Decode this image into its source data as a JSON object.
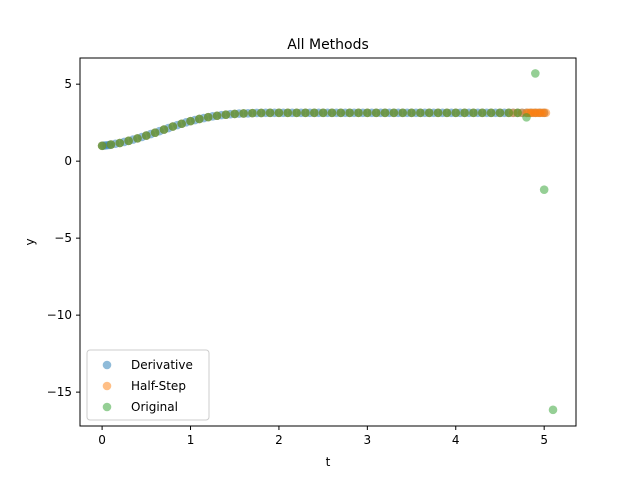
{
  "chart_data": {
    "type": "scatter",
    "title": "All Methods",
    "xlabel": "t",
    "ylabel": "y",
    "xlim": [
      -0.25,
      5.36
    ],
    "ylim": [
      -17.2,
      6.7
    ],
    "xticks": [
      0,
      1,
      2,
      3,
      4,
      5
    ],
    "yticks": [
      -15,
      -10,
      -5,
      0,
      5
    ],
    "ytick_labels": [
      "−15",
      "−10",
      "−5",
      "0",
      "5"
    ],
    "grid": false,
    "legend": {
      "placement": "lower-left",
      "entries": [
        "Derivative",
        "Half-Step",
        "Original"
      ]
    },
    "series": [
      {
        "name": "Derivative",
        "color": "#1f77b4",
        "opacity": 0.5,
        "x": [
          0.0,
          0.02,
          0.05,
          0.08,
          0.1,
          0.15,
          0.2,
          0.25,
          0.3,
          0.35,
          0.4,
          0.45,
          0.5,
          0.55,
          0.6,
          0.65,
          0.7,
          0.75,
          0.8,
          0.85,
          0.9,
          0.95,
          1.0,
          1.05,
          1.1,
          1.15,
          1.2,
          1.25,
          1.3,
          1.35,
          1.4,
          1.45,
          1.5,
          1.55,
          1.6,
          1.65,
          1.7,
          1.75,
          1.8,
          1.85,
          1.9,
          1.95,
          2.0,
          2.05,
          2.1,
          2.15,
          2.2,
          2.25,
          2.3,
          2.35,
          2.4,
          2.45,
          2.5,
          2.55,
          2.6,
          2.65,
          2.7,
          2.75,
          2.8,
          2.85,
          2.9,
          2.95,
          3.0,
          3.05,
          3.1,
          3.15,
          3.2,
          3.25,
          3.3,
          3.35,
          3.4,
          3.45,
          3.5,
          3.55,
          3.6,
          3.65,
          3.7,
          3.75,
          3.8,
          3.85,
          3.9,
          3.95,
          4.0,
          4.05,
          4.1,
          4.15,
          4.2,
          4.25,
          4.3,
          4.35,
          4.4,
          4.45,
          4.5,
          4.55,
          4.6,
          4.65,
          4.7,
          4.75,
          4.8,
          4.85,
          4.9,
          4.95,
          5.0
        ],
        "y": [
          1.0,
          1.01,
          1.03,
          1.05,
          1.08,
          1.13,
          1.18,
          1.25,
          1.32,
          1.4,
          1.48,
          1.57,
          1.66,
          1.76,
          1.85,
          1.95,
          2.05,
          2.15,
          2.25,
          2.34,
          2.43,
          2.52,
          2.6,
          2.67,
          2.74,
          2.8,
          2.86,
          2.91,
          2.95,
          2.99,
          3.02,
          3.05,
          3.07,
          3.09,
          3.1,
          3.11,
          3.12,
          3.13,
          3.13,
          3.14,
          3.14,
          3.14,
          3.14,
          3.14,
          3.14,
          3.14,
          3.14,
          3.14,
          3.14,
          3.14,
          3.14,
          3.14,
          3.14,
          3.14,
          3.14,
          3.14,
          3.14,
          3.14,
          3.14,
          3.14,
          3.14,
          3.14,
          3.14,
          3.14,
          3.14,
          3.14,
          3.14,
          3.14,
          3.14,
          3.14,
          3.14,
          3.14,
          3.14,
          3.14,
          3.14,
          3.14,
          3.14,
          3.14,
          3.14,
          3.14,
          3.14,
          3.14,
          3.14,
          3.14,
          3.14,
          3.14,
          3.14,
          3.14,
          3.14,
          3.14,
          3.14,
          3.14,
          3.14,
          3.14,
          3.14,
          3.14,
          3.14,
          3.14,
          3.14,
          3.14,
          3.14,
          3.14,
          3.14
        ]
      },
      {
        "name": "Half-Step",
        "color": "#ff7f0e",
        "opacity": 0.5,
        "x": [
          0.0,
          0.1,
          0.2,
          0.3,
          0.4,
          0.5,
          0.6,
          0.7,
          0.8,
          0.9,
          1.0,
          1.1,
          1.2,
          1.3,
          1.4,
          1.5,
          1.6,
          1.7,
          1.8,
          1.9,
          2.0,
          2.1,
          2.2,
          2.3,
          2.4,
          2.5,
          2.6,
          2.7,
          2.8,
          2.9,
          3.0,
          3.1,
          3.2,
          3.3,
          3.4,
          3.5,
          3.6,
          3.7,
          3.8,
          3.9,
          4.0,
          4.1,
          4.2,
          4.3,
          4.4,
          4.5,
          4.6,
          4.65,
          4.7,
          4.75,
          4.8,
          4.82,
          4.84,
          4.86,
          4.88,
          4.9,
          4.92,
          4.94,
          4.96,
          4.98,
          5.0,
          5.02
        ],
        "y": [
          1.0,
          1.08,
          1.18,
          1.32,
          1.48,
          1.66,
          1.85,
          2.05,
          2.25,
          2.43,
          2.6,
          2.74,
          2.86,
          2.95,
          3.02,
          3.07,
          3.1,
          3.12,
          3.13,
          3.14,
          3.14,
          3.14,
          3.14,
          3.14,
          3.14,
          3.14,
          3.14,
          3.14,
          3.14,
          3.14,
          3.14,
          3.14,
          3.14,
          3.14,
          3.14,
          3.14,
          3.14,
          3.14,
          3.14,
          3.14,
          3.14,
          3.14,
          3.14,
          3.14,
          3.14,
          3.14,
          3.14,
          3.14,
          3.14,
          3.14,
          3.14,
          3.14,
          3.14,
          3.14,
          3.14,
          3.14,
          3.14,
          3.14,
          3.14,
          3.14,
          3.14,
          3.14
        ]
      },
      {
        "name": "Original",
        "color": "#2ca02c",
        "opacity": 0.5,
        "x": [
          0.0,
          0.1,
          0.2,
          0.3,
          0.4,
          0.5,
          0.6,
          0.7,
          0.8,
          0.9,
          1.0,
          1.1,
          1.2,
          1.3,
          1.4,
          1.5,
          1.6,
          1.7,
          1.8,
          1.9,
          2.0,
          2.1,
          2.2,
          2.3,
          2.4,
          2.5,
          2.6,
          2.7,
          2.8,
          2.9,
          3.0,
          3.1,
          3.2,
          3.3,
          3.4,
          3.5,
          3.6,
          3.7,
          3.8,
          3.9,
          4.0,
          4.1,
          4.2,
          4.3,
          4.4,
          4.5,
          4.6,
          4.7,
          4.8,
          4.9,
          5.0,
          5.1
        ],
        "y": [
          1.0,
          1.08,
          1.18,
          1.32,
          1.48,
          1.66,
          1.85,
          2.05,
          2.25,
          2.43,
          2.6,
          2.74,
          2.86,
          2.95,
          3.02,
          3.07,
          3.1,
          3.12,
          3.13,
          3.14,
          3.14,
          3.14,
          3.14,
          3.14,
          3.14,
          3.14,
          3.14,
          3.14,
          3.14,
          3.14,
          3.14,
          3.14,
          3.14,
          3.14,
          3.14,
          3.14,
          3.14,
          3.14,
          3.14,
          3.14,
          3.14,
          3.14,
          3.14,
          3.14,
          3.14,
          3.14,
          3.14,
          3.14,
          2.85,
          5.7,
          -1.85,
          -16.15
        ]
      }
    ]
  }
}
